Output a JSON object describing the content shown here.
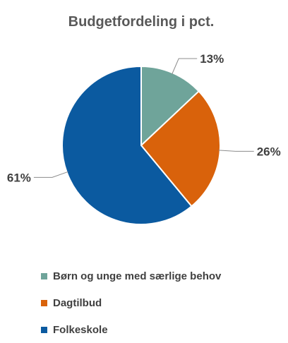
{
  "chart_data": {
    "type": "pie",
    "title": "Budgetfordeling i pct.",
    "start_angle_deg": 0,
    "direction": "clockwise",
    "legend_position": "bottom",
    "slices": [
      {
        "label": "Børn og unge med særlige behov",
        "value": 13,
        "data_label": "13%",
        "color": "#6FA49A"
      },
      {
        "label": "Dagtilbud",
        "value": 26,
        "data_label": "26%",
        "color": "#D9620B"
      },
      {
        "label": "Folkeskole",
        "value": 61,
        "data_label": "61%",
        "color": "#0B5AA0"
      }
    ]
  }
}
